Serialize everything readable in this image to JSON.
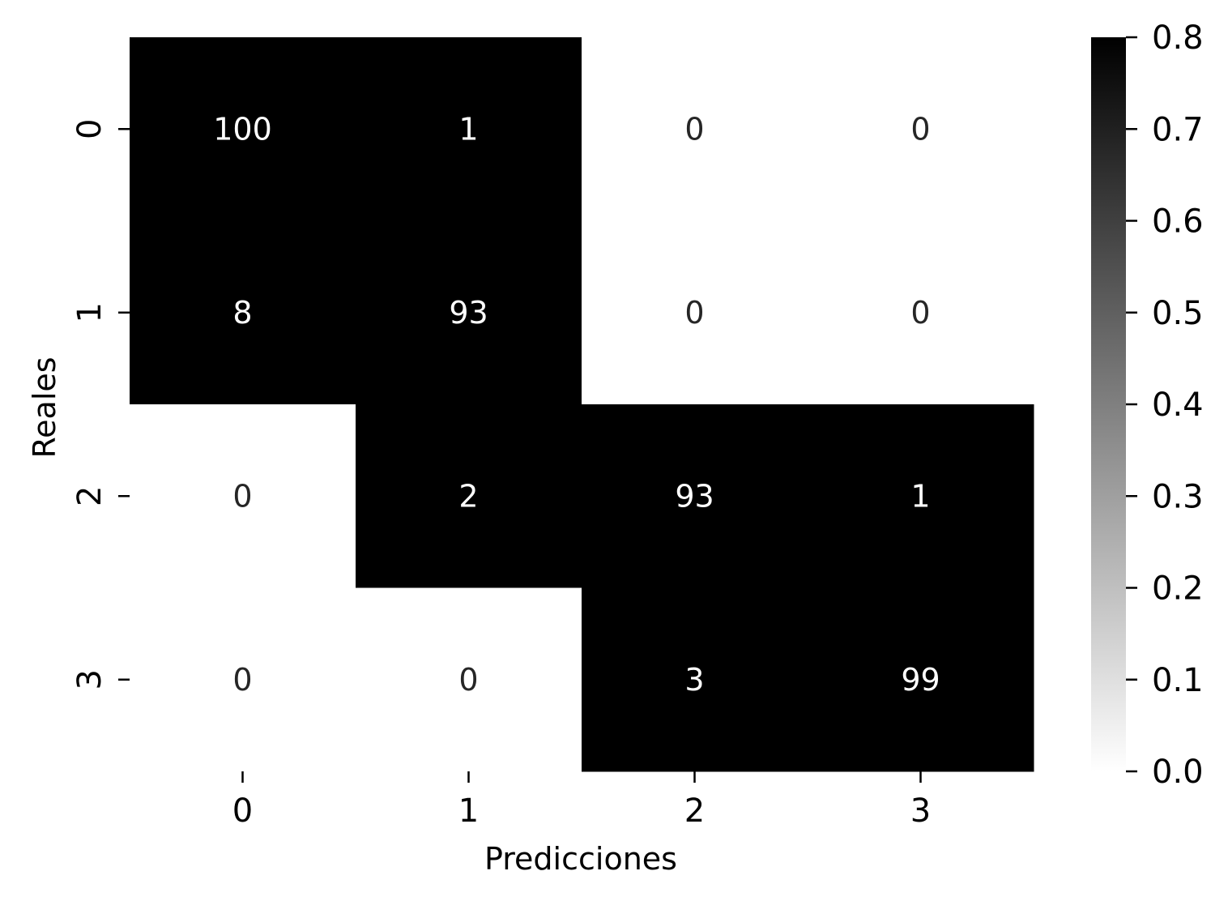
{
  "chart_data": {
    "type": "heatmap",
    "title": "",
    "xlabel": "Predicciones",
    "ylabel": "Reales",
    "x_categories": [
      "0",
      "1",
      "2",
      "3"
    ],
    "y_categories": [
      "0",
      "1",
      "2",
      "3"
    ],
    "values": [
      [
        100,
        1,
        0,
        0
      ],
      [
        8,
        93,
        0,
        0
      ],
      [
        0,
        2,
        93,
        1
      ],
      [
        0,
        0,
        3,
        99
      ]
    ],
    "colormap": "Greys",
    "vmin": 0.0,
    "vmax": 0.8,
    "colorbar_ticks": [
      "0.0",
      "0.1",
      "0.2",
      "0.3",
      "0.4",
      "0.5",
      "0.6",
      "0.7",
      "0.8"
    ],
    "annotation_color_dark_cell": "#ffffff",
    "annotation_color_light_cell": "#262626",
    "grid": false,
    "legend": "colorbar-right"
  }
}
